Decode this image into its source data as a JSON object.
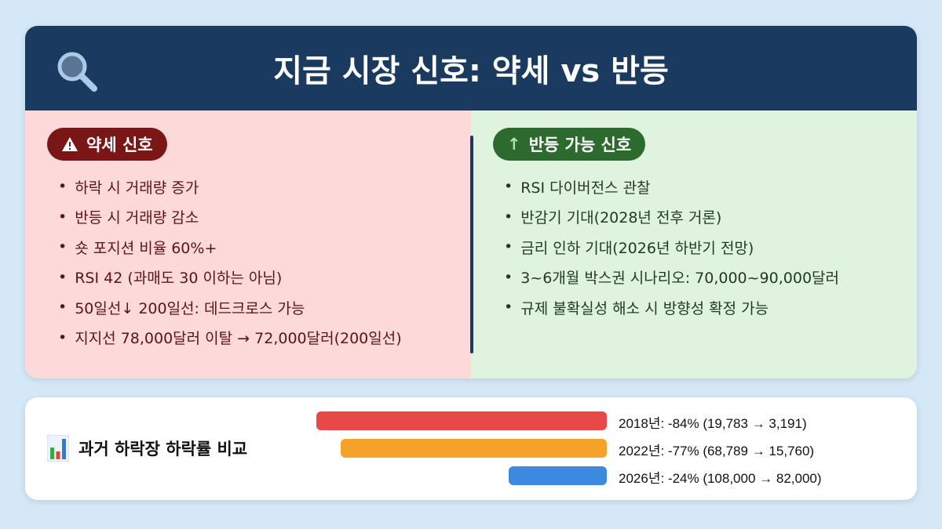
{
  "header": {
    "title": "지금 시장 신호: 약세 vs 반등",
    "icon": "search-icon"
  },
  "bearish": {
    "label": "약세 신호",
    "icon": "warning-icon",
    "items": [
      "하락 시 거래량 증가",
      "반등 시 거래량 감소",
      "숏 포지션 비율 60%+",
      "RSI 42 (과매도 30 이하는 아님)",
      "50일선↓ 200일선: 데드크로스 가능",
      "지지선 78,000달러 이탈 → 72,000달러(200일선)"
    ]
  },
  "bullish": {
    "label": "반등 가능 신호",
    "icon": "arrow-up-icon",
    "items": [
      "RSI 다이버전스 관찰",
      "반감기 기대(2028년 전후 거론)",
      "금리 인하 기대(2026년 하반기 전망)",
      "3~6개월 박스권 시나리오: 70,000~90,000달러",
      "규제 불확실성 해소 시 방향성 확정 가능"
    ]
  },
  "comparison": {
    "title": "과거 하락장 하락률 비교",
    "icon": "bar-chart-icon"
  },
  "chart_data": {
    "type": "bar",
    "orientation": "horizontal",
    "categories": [
      "2018년",
      "2022년",
      "2026년"
    ],
    "values": [
      -84,
      -77,
      -24
    ],
    "labels": [
      "2018년: -84% (19,783 → 3,191)",
      "2022년: -77% (68,789 → 15,760)",
      "2026년: -24% (108,000 → 82,000)"
    ],
    "colors": [
      "#e84848",
      "#f7a22b",
      "#3b8ae0"
    ]
  }
}
